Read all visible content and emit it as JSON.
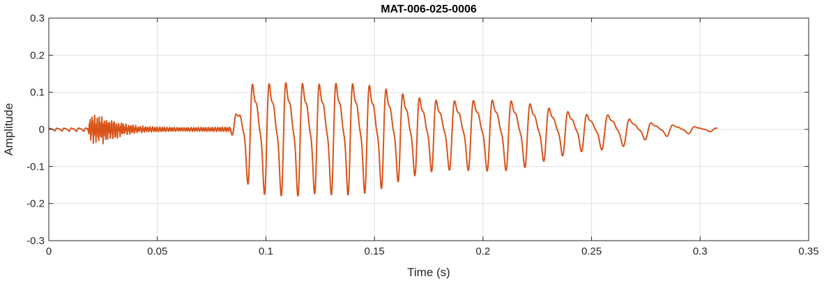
{
  "chart_data": {
    "type": "line",
    "title": "MAT-006-025-0006",
    "xlabel": "Time (s)",
    "ylabel": "Amplitude",
    "xlim": [
      0,
      0.35
    ],
    "ylim": [
      -0.3,
      0.3
    ],
    "xticks": [
      0,
      0.05,
      0.1,
      0.15,
      0.2,
      0.25,
      0.3,
      0.35
    ],
    "xtick_labels": [
      "0",
      "0.05",
      "0.1",
      "0.15",
      "0.2",
      "0.25",
      "0.3",
      "0.35"
    ],
    "yticks": [
      -0.3,
      -0.2,
      -0.1,
      0,
      0.1,
      0.2,
      0.3
    ],
    "ytick_labels": [
      "-0.3",
      "-0.2",
      "-0.1",
      "0",
      "0.1",
      "0.2",
      "0.3"
    ],
    "grid": true,
    "box": true,
    "series": [
      {
        "color": "#D95319",
        "x_start": 0,
        "x_end": 0.308,
        "envelope": [
          [
            0,
            0.004
          ],
          [
            0.018,
            0.005
          ],
          [
            0.019,
            0.03
          ],
          [
            0.025,
            0.03
          ],
          [
            0.032,
            0.018
          ],
          [
            0.042,
            0.008
          ],
          [
            0.06,
            0.005
          ],
          [
            0.083,
            0.006
          ],
          [
            0.084,
            0.008
          ],
          [
            0.088,
            0.09
          ],
          [
            0.094,
            0.17
          ],
          [
            0.1,
            0.18
          ],
          [
            0.106,
            0.195
          ],
          [
            0.113,
            0.205
          ],
          [
            0.12,
            0.19
          ],
          [
            0.14,
            0.16
          ],
          [
            0.16,
            0.14
          ],
          [
            0.18,
            0.125
          ],
          [
            0.2,
            0.105
          ],
          [
            0.22,
            0.095
          ],
          [
            0.24,
            0.075
          ],
          [
            0.25,
            0.06
          ],
          [
            0.26,
            0.055
          ],
          [
            0.27,
            0.03
          ],
          [
            0.28,
            0.02
          ],
          [
            0.295,
            0.012
          ],
          [
            0.308,
            0.005
          ]
        ],
        "noise": [
          [
            0.018,
            0.032,
            0.35
          ],
          [
            0.032,
            0.045,
            0.2
          ]
        ],
        "segments": [
          {
            "x": [
              0,
              0.018
            ],
            "f": 300
          },
          {
            "x": [
              0.018,
              0.084
            ],
            "f": 900
          },
          {
            "x": [
              0.084,
              0.18
            ],
            "f": 130
          },
          {
            "x": [
              0.18,
              0.25
            ],
            "f": 115
          },
          {
            "x": [
              0.25,
              0.308
            ],
            "f": 100
          }
        ]
      }
    ]
  }
}
